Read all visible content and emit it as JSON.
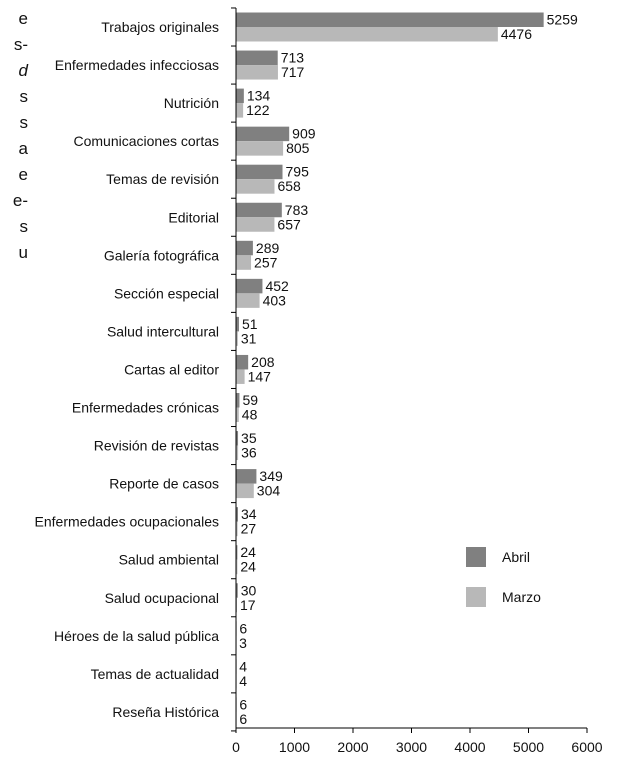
{
  "margin_fragments": [
    "e",
    "s-",
    "d",
    "s",
    "s",
    "a",
    "e",
    "e-",
    "s",
    "u"
  ],
  "chart_data": {
    "type": "bar",
    "orientation": "horizontal",
    "categories": [
      "Trabajos originales",
      "Enfermedades infecciosas",
      "Nutrición",
      "Comunicaciones cortas",
      "Temas de revisión",
      "Editorial",
      "Galería fotográfica",
      "Sección especial",
      "Salud intercultural",
      "Cartas al editor",
      "Enfermedades crónicas",
      "Revisión de revistas",
      "Reporte de casos",
      "Enfermedades ocupacionales",
      "Salud ambiental",
      "Salud ocupacional",
      "Héroes de la salud pública",
      "Temas de actualidad",
      "Reseña Histórica"
    ],
    "series": [
      {
        "name": "Abril",
        "color": "#808080",
        "values": [
          5259,
          713,
          134,
          909,
          795,
          783,
          289,
          452,
          51,
          208,
          59,
          35,
          349,
          34,
          24,
          30,
          6,
          4,
          6
        ]
      },
      {
        "name": "Marzo",
        "color": "#b8b8b8",
        "values": [
          4476,
          717,
          122,
          805,
          658,
          657,
          257,
          403,
          31,
          147,
          48,
          36,
          304,
          27,
          24,
          17,
          3,
          4,
          6
        ]
      }
    ],
    "xlim": [
      0,
      6000
    ],
    "xticks": [
      0,
      1000,
      2000,
      3000,
      4000,
      5000,
      6000
    ],
    "legend": "right",
    "grid": false
  }
}
